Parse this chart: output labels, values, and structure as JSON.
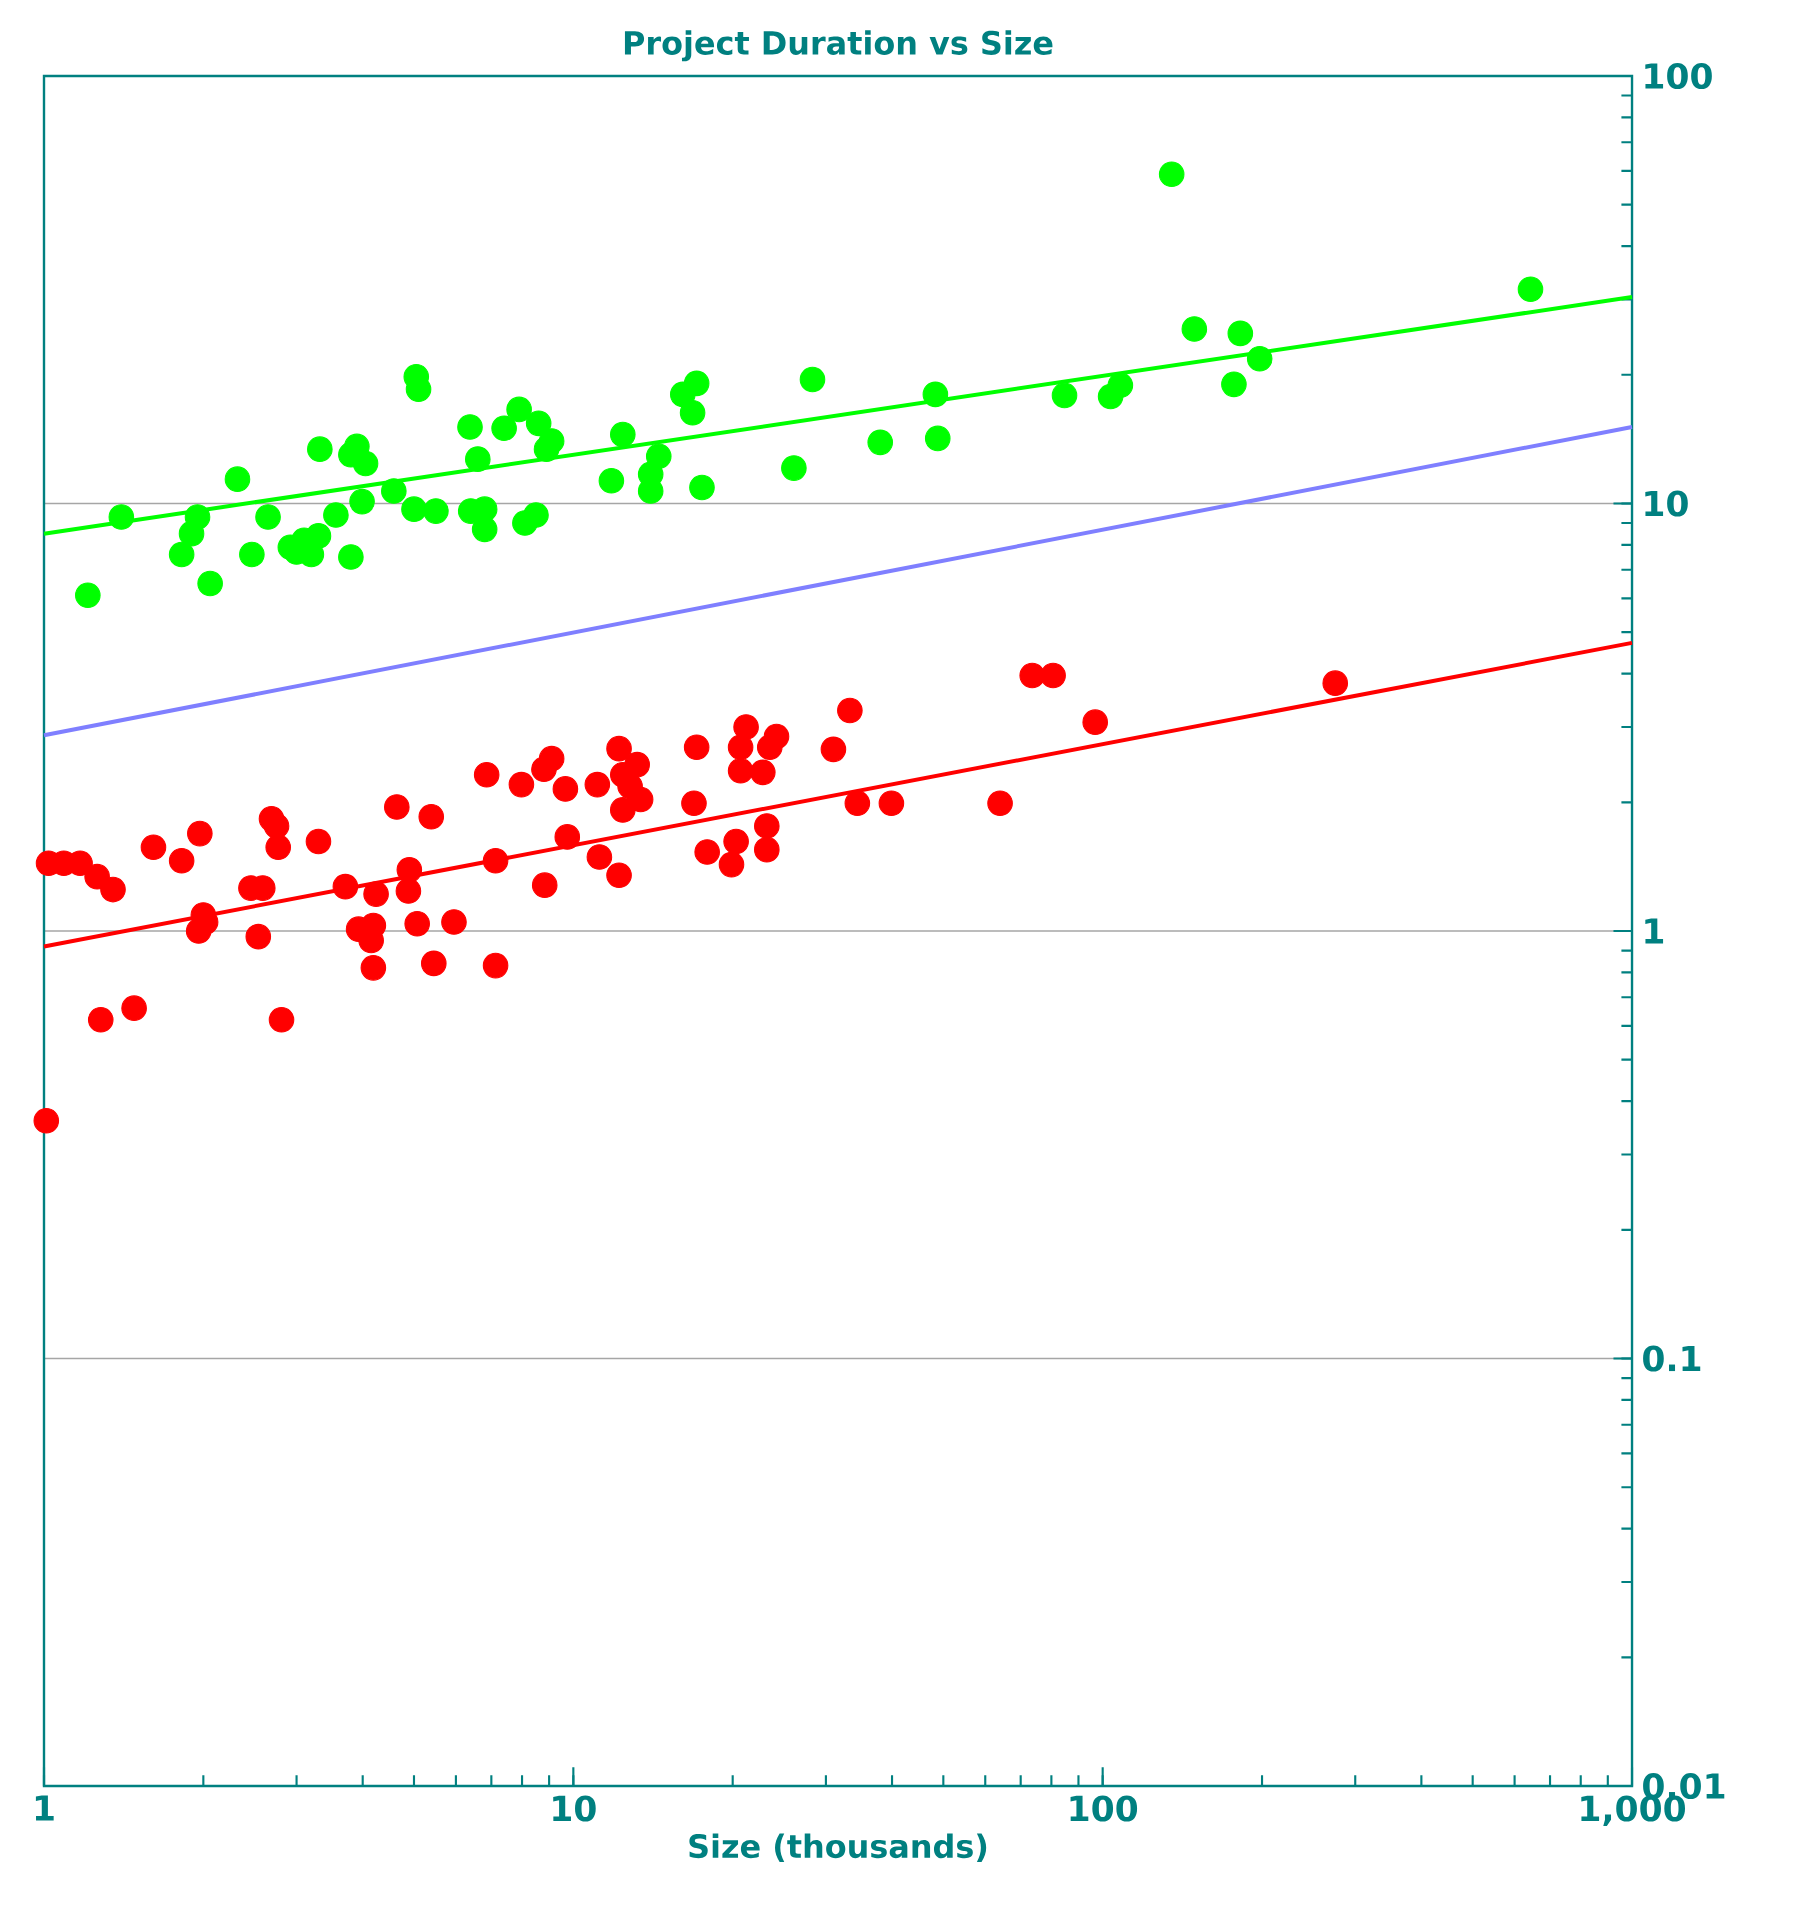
{
  "chart_data": {
    "type": "scatter",
    "title": "Project Duration vs Size",
    "xlabel": "Size (thousands)",
    "log": "xy",
    "xlim": [
      1,
      1000
    ],
    "ylim": [
      0.01,
      100
    ],
    "xticks": [
      1,
      10,
      100,
      {
        "value": 1000,
        "label": "1,000"
      }
    ],
    "yticks": [
      0.01,
      0.1,
      1,
      10,
      100
    ],
    "grid": "y",
    "marker": "circle",
    "series": [
      {
        "color": "#00ff00",
        "x": [
          1.21,
          1.4,
          1.82,
          1.9,
          1.95,
          2.06,
          2.32,
          2.47,
          2.65,
          2.92,
          3.0,
          3.1,
          3.2,
          3.3,
          3.32,
          3.56,
          3.8,
          3.8,
          3.9,
          3.99,
          4.05,
          4.58,
          5.05,
          5.1,
          5.0,
          5.5,
          6.38,
          6.4,
          6.6,
          6.8,
          6.8,
          7.4,
          7.9,
          8.1,
          8.5,
          8.6,
          8.9,
          9.1,
          11.8,
          12.4,
          14.0,
          14.0,
          14.5,
          16.1,
          17.1,
          16.8,
          17.5,
          26.1,
          28.3,
          38.0,
          48.3,
          48.8,
          84.7,
          103.5,
          108,
          135,
          149,
          182,
          177,
          198,
          643
        ],
        "values": [
          6.1,
          9.3,
          7.6,
          8.5,
          9.3,
          6.5,
          11.4,
          7.6,
          9.3,
          7.9,
          7.7,
          8.2,
          7.6,
          8.4,
          13.4,
          9.4,
          13.0,
          7.5,
          13.6,
          10.1,
          12.4,
          10.7,
          19.8,
          18.5,
          9.7,
          9.6,
          15.1,
          9.6,
          12.7,
          8.7,
          9.7,
          15.0,
          16.6,
          9.0,
          9.4,
          15.4,
          13.4,
          14.0,
          11.3,
          14.5,
          10.7,
          11.7,
          12.9,
          18.0,
          19.1,
          16.3,
          10.9,
          12.1,
          19.5,
          13.9,
          18.0,
          14.2,
          17.9,
          17.8,
          18.9,
          58.9,
          25.6,
          25.0,
          19.0,
          21.8,
          31.7
        ]
      },
      {
        "color": "#ff0000",
        "x": [
          1.01,
          1.02,
          1.09,
          1.17,
          1.26,
          1.35,
          1.28,
          1.48,
          1.61,
          1.82,
          1.97,
          2.0,
          2.02,
          1.96,
          2.54,
          2.46,
          2.59,
          2.69,
          2.75,
          2.77,
          2.81,
          3.3,
          3.71,
          3.93,
          4.19,
          4.15,
          4.19,
          4.24,
          4.64,
          4.9,
          4.88,
          5.07,
          5.39,
          5.45,
          5.95,
          6.86,
          7.13,
          7.13,
          7.98,
          8.83,
          8.8,
          9.1,
          9.66,
          9.74,
          11.1,
          11.2,
          12.2,
          12.2,
          13.2,
          12.4,
          12.8,
          13.4,
          12.4,
          17.1,
          16.9,
          17.9,
          21.2,
          20.7,
          20.7,
          22.8,
          23.5,
          24.2,
          20.3,
          19.9,
          23.2,
          23.2,
          31.0,
          33.3,
          34.4,
          39.9,
          64.0,
          73.6,
          80.6,
          96.8,
          275
        ],
        "values": [
          0.36,
          1.44,
          1.44,
          1.44,
          1.34,
          1.25,
          0.62,
          0.66,
          1.57,
          1.46,
          1.69,
          1.09,
          1.05,
          1.0,
          0.97,
          1.26,
          1.26,
          1.83,
          1.76,
          1.57,
          0.62,
          1.62,
          1.27,
          1.01,
          1.03,
          0.95,
          0.82,
          1.22,
          1.95,
          1.39,
          1.24,
          1.04,
          1.85,
          0.84,
          1.05,
          2.32,
          1.46,
          0.83,
          2.2,
          1.28,
          2.39,
          2.53,
          2.15,
          1.66,
          2.2,
          1.49,
          1.35,
          2.67,
          2.45,
          2.32,
          2.18,
          2.03,
          1.92,
          2.69,
          1.99,
          1.53,
          3.0,
          2.69,
          2.37,
          2.35,
          2.69,
          2.85,
          1.62,
          1.43,
          1.76,
          1.55,
          2.66,
          3.28,
          1.99,
          1.99,
          1.99,
          3.96,
          3.96,
          3.08,
          3.8
        ]
      },
      {
        "type": "line",
        "marker": "none",
        "color": "#00ff00",
        "x": [
          1,
          1000
        ],
        "values": [
          8.5,
          30.4
        ]
      },
      {
        "type": "line",
        "marker": "none",
        "color": "#7f7fff",
        "x": [
          1,
          1000
        ],
        "values": [
          2.87,
          15.1
        ]
      },
      {
        "type": "line",
        "marker": "none",
        "color": "#ff0000",
        "x": [
          1,
          1000
        ],
        "values": [
          0.92,
          4.72
        ]
      }
    ]
  }
}
